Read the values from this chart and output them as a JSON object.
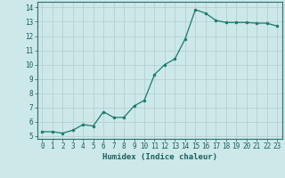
{
  "x": [
    0,
    1,
    2,
    3,
    4,
    5,
    6,
    7,
    8,
    9,
    10,
    11,
    12,
    13,
    14,
    15,
    16,
    17,
    18,
    19,
    20,
    21,
    22,
    23
  ],
  "y": [
    5.3,
    5.3,
    5.2,
    5.4,
    5.8,
    5.7,
    6.7,
    6.3,
    6.3,
    7.1,
    7.5,
    9.3,
    10.0,
    10.4,
    11.8,
    13.85,
    13.6,
    13.1,
    12.95,
    12.95,
    12.95,
    12.9,
    12.9,
    12.7
  ],
  "line_color": "#1a7a6e",
  "marker": "o",
  "markersize": 2.0,
  "linewidth": 0.9,
  "xlabel": "Humidex (Indice chaleur)",
  "xlim": [
    -0.5,
    23.5
  ],
  "ylim": [
    4.8,
    14.4
  ],
  "yticks": [
    5,
    6,
    7,
    8,
    9,
    10,
    11,
    12,
    13,
    14
  ],
  "xticks": [
    0,
    1,
    2,
    3,
    4,
    5,
    6,
    7,
    8,
    9,
    10,
    11,
    12,
    13,
    14,
    15,
    16,
    17,
    18,
    19,
    20,
    21,
    22,
    23
  ],
  "bg_color": "#cce8e8",
  "grid_color": "#b0cccc",
  "axes_color": "#2d6e6e",
  "tick_color": "#1a5f5f",
  "label_fontsize": 6.5,
  "tick_fontsize": 5.5
}
